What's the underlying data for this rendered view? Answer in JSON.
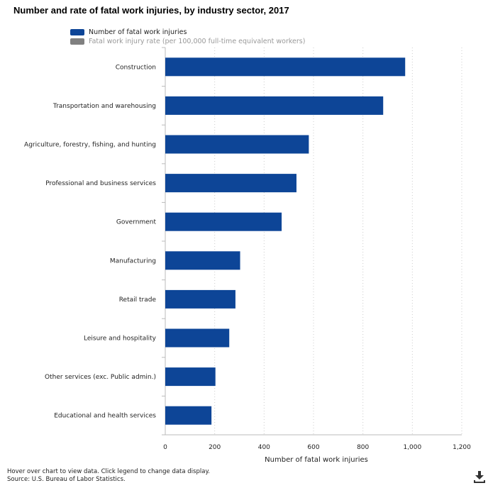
{
  "chart_data": {
    "type": "bar",
    "orientation": "horizontal",
    "title": "Number and rate of fatal work injuries, by industry sector, 2017",
    "categories": [
      "Construction",
      "Transportation and warehousing",
      "Agriculture, forestry, fishing, and hunting",
      "Professional and business services",
      "Government",
      "Manufacturing",
      "Retail trade",
      "Leisure and hospitality",
      "Other services (exc. Public admin.)",
      "Educational and health services"
    ],
    "series": [
      {
        "name": "Number of fatal work injuries",
        "color": "#0d4597",
        "visible": true,
        "values": [
          971,
          882,
          581,
          531,
          471,
          303,
          284,
          259,
          203,
          187
        ]
      },
      {
        "name": "Fatal work injury rate (per 100,000 full-time equivalent workers)",
        "color": "#808080",
        "visible": false
      }
    ],
    "xlabel": "Number of fatal work injuries",
    "xlim": [
      0,
      1200
    ],
    "xticks": [
      "0",
      "200",
      "400",
      "600",
      "800",
      "1,000",
      "1,200"
    ],
    "grid": "vertical dotted",
    "legend": "top"
  },
  "footnote": {
    "line1": "Hover over chart to view data. Click legend to change data display.",
    "line2": "Source: U.S. Bureau of Labor Statistics."
  },
  "icons": {
    "download": "download-icon"
  }
}
